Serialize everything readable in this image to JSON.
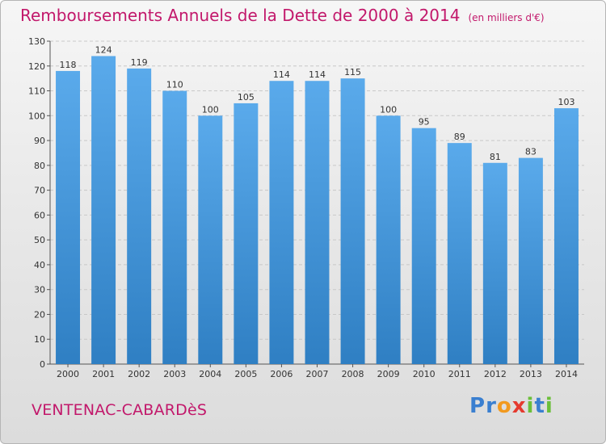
{
  "title": "Remboursements Annuels de la Dette de 2000 à 2014",
  "subtitle": "(en milliers d'€)",
  "commune": "VENTENAC-CABARDèS",
  "logo": {
    "text": "Proxiti",
    "letters": [
      {
        "char": "P",
        "color": "#3a7fd0"
      },
      {
        "char": "r",
        "color": "#3a7fd0"
      },
      {
        "char": "o",
        "color": "#f29a1f"
      },
      {
        "char": "x",
        "color": "#e53a2f"
      },
      {
        "char": "i",
        "color": "#6bbf3a"
      },
      {
        "char": "t",
        "color": "#3a7fd0"
      },
      {
        "char": "i",
        "color": "#6bbf3a"
      }
    ]
  },
  "colors": {
    "bar_top": "#5aaaeb",
    "bar_bottom": "#2f7fc3",
    "grid": "#c8c8c8",
    "title": "#c2186b"
  },
  "chart_data": {
    "type": "bar",
    "title": "Remboursements Annuels de la Dette de 2000 à 2014",
    "subtitle": "(en milliers d'€)",
    "xlabel": "",
    "ylabel": "",
    "categories": [
      "2000",
      "2001",
      "2002",
      "2003",
      "2004",
      "2005",
      "2006",
      "2007",
      "2008",
      "2009",
      "2010",
      "2011",
      "2012",
      "2013",
      "2014"
    ],
    "values": [
      118,
      124,
      119,
      110,
      100,
      105,
      114,
      114,
      115,
      100,
      95,
      89,
      81,
      83,
      103
    ],
    "ylim": [
      0,
      130
    ],
    "yticks": [
      0,
      10,
      20,
      30,
      40,
      50,
      60,
      70,
      80,
      90,
      100,
      110,
      120,
      130
    ],
    "grid": true,
    "legend": "none"
  }
}
